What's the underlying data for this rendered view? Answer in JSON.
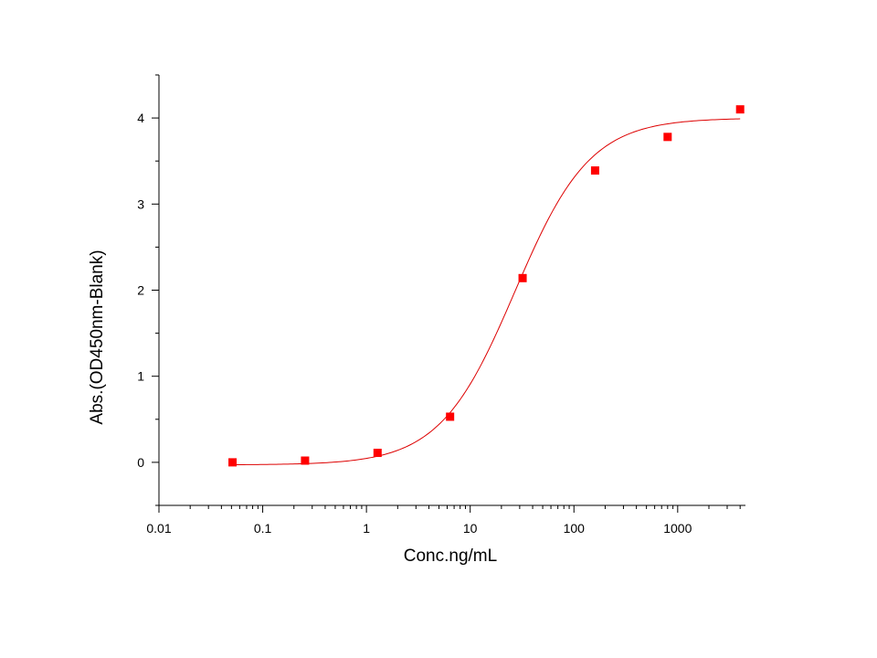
{
  "chart_data": {
    "type": "scatter",
    "title": "",
    "xlabel": "Conc.ng/mL",
    "ylabel": "Abs.(OD450nm-Blank)",
    "xscale": "log",
    "xlim": [
      0.01,
      4500
    ],
    "ylim": [
      -0.5,
      4.5
    ],
    "xticks": [
      0.01,
      0.1,
      1,
      10,
      100,
      1000
    ],
    "xtick_labels": [
      "0.01",
      "0.1",
      "1",
      "10",
      "100",
      "1000"
    ],
    "yticks": [
      0,
      1,
      2,
      3,
      4
    ],
    "ytick_labels": [
      "0",
      "1",
      "2",
      "3",
      "4"
    ],
    "grid": false,
    "series": [
      {
        "kind": "points",
        "marker": "square",
        "color": "#ff0000",
        "x": [
          0.0512,
          0.256,
          1.28,
          6.4,
          32,
          160,
          800,
          4000
        ],
        "y": [
          0.0,
          0.02,
          0.11,
          0.53,
          2.14,
          3.39,
          3.78,
          4.1
        ]
      },
      {
        "kind": "fit-curve",
        "color": "#dd0000",
        "model": "4PL",
        "bottom": -0.03,
        "top": 4.0,
        "ec50": 27,
        "hill": 1.2,
        "xrange": [
          0.0512,
          4000
        ]
      }
    ]
  }
}
